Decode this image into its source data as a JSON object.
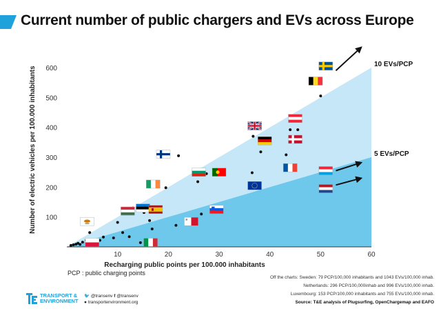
{
  "title": "Current number of public chargers and EVs across Europe",
  "colors": {
    "accent": "#1fa2dc",
    "band_light": "#c5e7f7",
    "band_dark": "#6ec8ec",
    "dot": "#111111"
  },
  "chart_data": {
    "type": "scatter",
    "xlabel": "Recharging public points per 100.000 inhabitants",
    "ylabel": "Number of electric vehicles per 100.000 inhabitants",
    "xlim": [
      0,
      60
    ],
    "ylim": [
      0,
      650
    ],
    "xticks": [
      10,
      20,
      30,
      40,
      50,
      60
    ],
    "yticks": [
      100,
      200,
      300,
      400,
      500,
      600
    ],
    "grid": false,
    "reference_lines": [
      {
        "label": "10 EVs/PCP",
        "ratio": 10
      },
      {
        "label": "5 EVs/PCP",
        "ratio": 5
      }
    ],
    "points": [
      {
        "x": 0.8,
        "y": 5
      },
      {
        "x": 1.3,
        "y": 7
      },
      {
        "x": 1.8,
        "y": 9
      },
      {
        "x": 2.2,
        "y": 12
      },
      {
        "x": 2.6,
        "y": 8
      },
      {
        "x": 3.1,
        "y": 16
      },
      {
        "x": 3.8,
        "y": 22
      },
      {
        "x": 4.5,
        "y": 48
      },
      {
        "x": 6.5,
        "y": 22
      },
      {
        "x": 7.2,
        "y": 33
      },
      {
        "x": 9.2,
        "y": 30
      },
      {
        "x": 10.0,
        "y": 82
      },
      {
        "x": 11.0,
        "y": 48
      },
      {
        "x": 12.3,
        "y": 34
      },
      {
        "x": 13.0,
        "y": 130
      },
      {
        "x": 14.5,
        "y": 14
      },
      {
        "x": 15.2,
        "y": 115
      },
      {
        "x": 16.3,
        "y": 88
      },
      {
        "x": 16.8,
        "y": 60
      },
      {
        "x": 19.5,
        "y": 198
      },
      {
        "x": 21.5,
        "y": 72
      },
      {
        "x": 22.0,
        "y": 305
      },
      {
        "x": 25.8,
        "y": 218
      },
      {
        "x": 26.5,
        "y": 110
      },
      {
        "x": 27.5,
        "y": 245
      },
      {
        "x": 36.5,
        "y": 248
      },
      {
        "x": 36.7,
        "y": 370
      },
      {
        "x": 38.2,
        "y": 318
      },
      {
        "x": 43.2,
        "y": 308
      },
      {
        "x": 44.0,
        "y": 392
      },
      {
        "x": 45.5,
        "y": 392
      },
      {
        "x": 50.0,
        "y": 505
      }
    ],
    "flags": [
      {
        "country": "Sweden",
        "x": 51.0,
        "y": 605
      },
      {
        "country": "Belgium",
        "x": 49.0,
        "y": 555
      },
      {
        "country": "Austria",
        "x": 45.0,
        "y": 430
      },
      {
        "country": "Denmark",
        "x": 45.0,
        "y": 360
      },
      {
        "country": "United Kingdom",
        "x": 37.0,
        "y": 405
      },
      {
        "country": "Germany",
        "x": 39.0,
        "y": 355
      },
      {
        "country": "Finland",
        "x": 19.0,
        "y": 310
      },
      {
        "country": "Bulgaria",
        "x": 26.0,
        "y": 250
      },
      {
        "country": "Portugal",
        "x": 30.0,
        "y": 250
      },
      {
        "country": "France",
        "x": 44.0,
        "y": 265
      },
      {
        "country": "European Union",
        "x": 37.0,
        "y": 205
      },
      {
        "country": "Luxembourg",
        "x": 51.0,
        "y": 255
      },
      {
        "country": "Netherlands",
        "x": 51.0,
        "y": 195
      },
      {
        "country": "Ireland",
        "x": 17.0,
        "y": 210
      },
      {
        "country": "Hungary",
        "x": 12.0,
        "y": 120
      },
      {
        "country": "Estonia",
        "x": 15.0,
        "y": 130
      },
      {
        "country": "Spain",
        "x": 17.5,
        "y": 125
      },
      {
        "country": "Slovenia",
        "x": 29.5,
        "y": 125
      },
      {
        "country": "Cyprus",
        "x": 4.0,
        "y": 85
      },
      {
        "country": "Malta",
        "x": 24.5,
        "y": 85
      },
      {
        "country": "Poland",
        "x": 5.0,
        "y": 15
      },
      {
        "country": "Italy",
        "x": 16.5,
        "y": 15
      }
    ]
  },
  "pcp_note": "PCP : public charging points",
  "notes": [
    "Off the charts: Sweden: 79 PCP/100,000 inhabitants and 1043 EVs/100,000 inhab.",
    "Netherlands: 296 PCP/100,000inhab and 996 EVs/100,000 inhab.",
    "Luxembourg: 153 PCP/100,000 inhabitants and 755 EVs/100,000 inhab."
  ],
  "source": "Source: T&E analysis of Plugsurfing, OpenChargemap and EAFO",
  "brand": {
    "line1": "TRANSPORT &",
    "line2": "ENVIRONMENT"
  },
  "social": {
    "twitter": "@transenv",
    "facebook": "@transenv",
    "web": "transportenvironment.org"
  }
}
